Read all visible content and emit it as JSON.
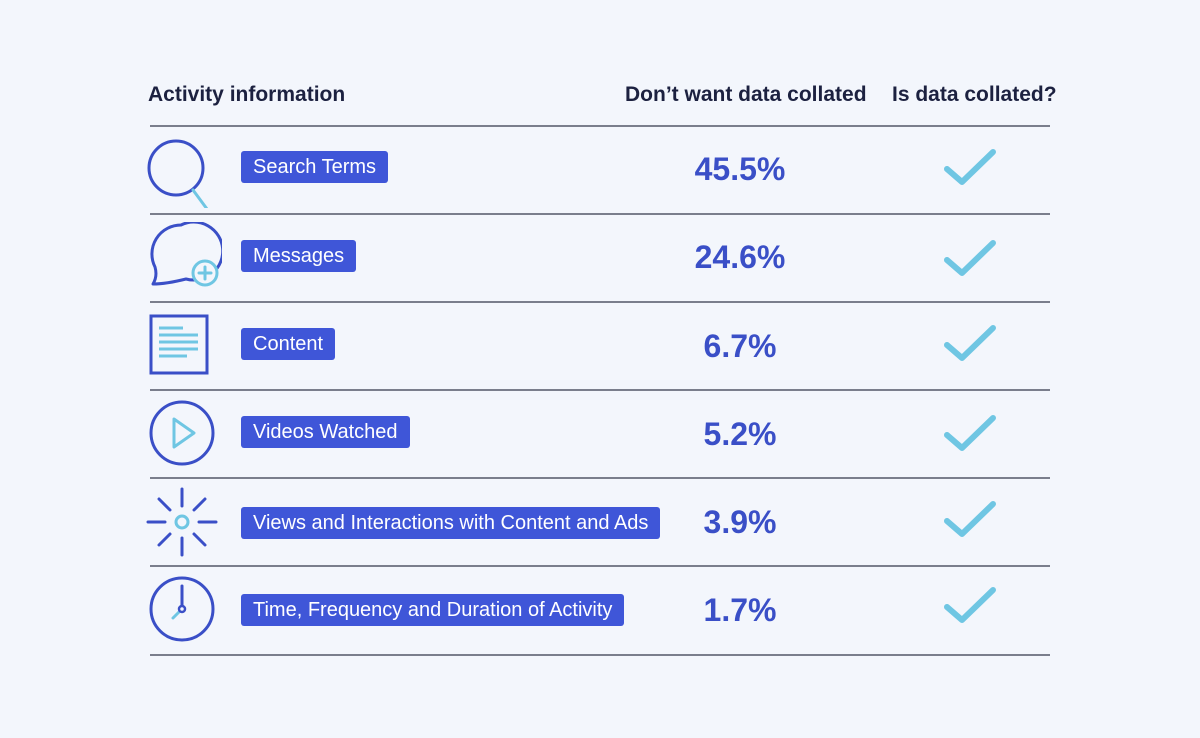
{
  "header": {
    "activity": "Activity information",
    "dont_want": "Don’t want data collated",
    "is_collated": "Is data collated?"
  },
  "chart_data": {
    "type": "table",
    "columns": [
      "Activity information",
      "Don’t want data collated",
      "Is data collated?"
    ],
    "rows": [
      {
        "icon": "search-icon",
        "label": "Search Terms",
        "value": 45.5,
        "display": "45.5%",
        "collated": true
      },
      {
        "icon": "message-add-icon",
        "label": "Messages",
        "value": 24.6,
        "display": "24.6%",
        "collated": true
      },
      {
        "icon": "document-icon",
        "label": "Content",
        "value": 6.7,
        "display": "6.7%",
        "collated": true
      },
      {
        "icon": "play-icon",
        "label": "Videos Watched",
        "value": 5.2,
        "display": "5.2%",
        "collated": true
      },
      {
        "icon": "sparkle-icon",
        "label": "Views and Interactions with Content and Ads",
        "value": 3.9,
        "display": "3.9%",
        "collated": true
      },
      {
        "icon": "clock-icon",
        "label": "Time, Frequency and Duration of Activity",
        "value": 1.7,
        "display": "1.7%",
        "collated": true
      }
    ]
  },
  "colors": {
    "background": "#f3f6fc",
    "label_bg": "#3f56d8",
    "percent": "#3a4fc7",
    "icon_dark": "#3a4fc7",
    "icon_light": "#6fc6e3",
    "check": "#6fc6e3"
  }
}
